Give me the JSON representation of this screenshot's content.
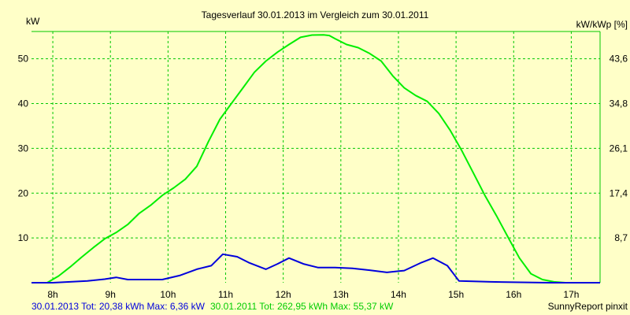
{
  "chart_data": {
    "type": "line",
    "title": "Tagesverlauf 30.01.2013 im Vergleich zum 30.01.2011",
    "ylabel": "kW",
    "ylabel_right": "kW/kWp [%]",
    "xlim": [
      7.63,
      17.5
    ],
    "ylim": [
      0,
      56.1
    ],
    "x_ticks": [
      8,
      9,
      10,
      11,
      12,
      13,
      14,
      15,
      16,
      17
    ],
    "x_tick_labels": [
      "8h",
      "9h",
      "10h",
      "11h",
      "12h",
      "13h",
      "14h",
      "15h",
      "16h",
      "17h"
    ],
    "y_ticks": [
      10,
      20,
      30,
      40,
      50
    ],
    "y_tick_labels": [
      "10",
      "20",
      "30",
      "40",
      "50"
    ],
    "y2_ticks": [
      10,
      20,
      30,
      40,
      50
    ],
    "y2_tick_labels": [
      "8,7",
      "17,4",
      "26,1",
      "34,8",
      "43,6"
    ],
    "grid": true,
    "colors": {
      "background": "#ffffc8",
      "grid": "#00c800",
      "series_2013": "#0000dc",
      "series_2011": "#00ee00"
    },
    "series": [
      {
        "name": "30.01.2011",
        "color": "#00ee00",
        "x": [
          7.63,
          7.9,
          8.1,
          8.3,
          8.5,
          8.7,
          8.9,
          9.1,
          9.3,
          9.5,
          9.7,
          9.9,
          10.1,
          10.3,
          10.5,
          10.7,
          10.9,
          11.1,
          11.3,
          11.5,
          11.7,
          11.9,
          12.1,
          12.3,
          12.5,
          12.7,
          12.8,
          12.9,
          13.1,
          13.3,
          13.5,
          13.7,
          13.9,
          14.1,
          14.3,
          14.5,
          14.7,
          14.9,
          15.1,
          15.3,
          15.5,
          15.7,
          15.9,
          16.1,
          16.3,
          16.5,
          16.7,
          16.9,
          17.5
        ],
        "y": [
          0,
          0,
          1.5,
          3.5,
          5.7,
          7.8,
          9.8,
          11.2,
          13,
          15.5,
          17.3,
          19.5,
          21.2,
          23.1,
          26,
          31.5,
          36.5,
          40,
          43.5,
          47,
          49.5,
          51.5,
          53.2,
          54.8,
          55.3,
          55.37,
          55.2,
          54.5,
          53.2,
          52.5,
          51.2,
          49.5,
          46.2,
          43.5,
          41.8,
          40.5,
          37.8,
          34,
          29.5,
          24.5,
          19.5,
          15,
          10.2,
          5.5,
          2,
          0.7,
          0.2,
          0,
          0
        ]
      },
      {
        "name": "30.01.2013",
        "color": "#0000dc",
        "x": [
          7.63,
          8.0,
          8.3,
          8.6,
          8.9,
          9.1,
          9.3,
          9.6,
          9.9,
          10.2,
          10.5,
          10.75,
          10.95,
          11.2,
          11.4,
          11.7,
          11.9,
          12.1,
          12.35,
          12.6,
          12.9,
          13.2,
          13.5,
          13.8,
          14.1,
          14.4,
          14.6,
          14.85,
          15.05,
          15.3,
          15.6,
          16.0,
          16.6,
          17.5
        ],
        "y": [
          0,
          0,
          0.2,
          0.4,
          0.8,
          1.2,
          0.7,
          0.7,
          0.7,
          1.6,
          3,
          3.8,
          6.36,
          5.8,
          4.5,
          3,
          4.2,
          5.5,
          4.2,
          3.4,
          3.4,
          3.2,
          2.8,
          2.3,
          2.7,
          4.5,
          5.5,
          3.8,
          0.4,
          0.3,
          0.2,
          0.1,
          0,
          0
        ]
      }
    ],
    "footer": {
      "blue_info": "30.01.2013 Tot: 20,38 kWh Max: 6,36 kW",
      "green_info": "30.01.2011 Tot: 262,95 kWh Max: 55,37 kW",
      "credit": "SunnyReport pinxit"
    }
  }
}
